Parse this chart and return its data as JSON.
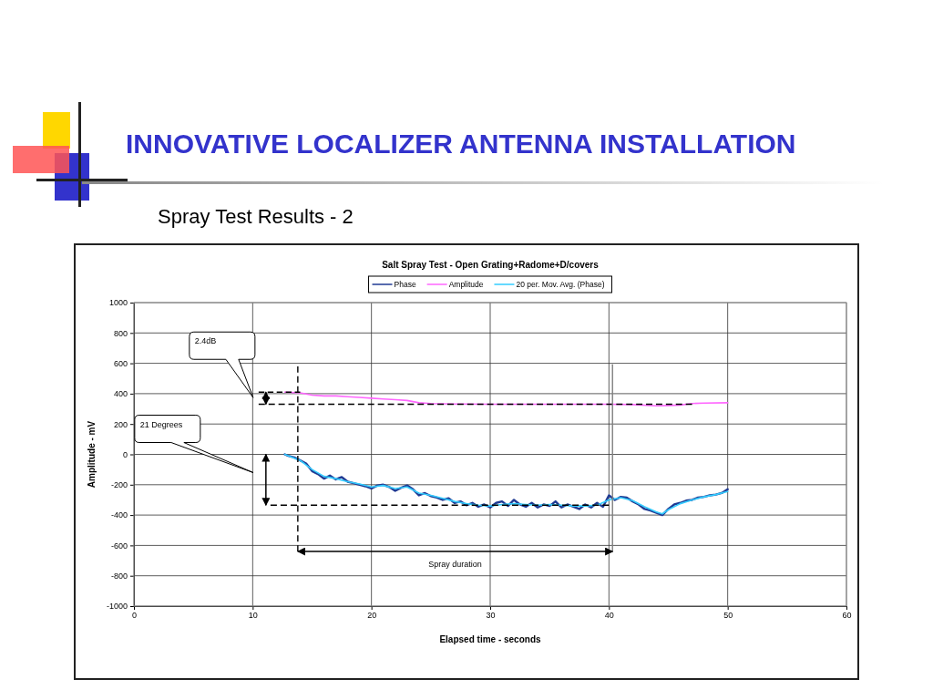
{
  "chart_data": {
    "type": "line",
    "title": "INNOVATIVE LOCALIZER ANTENNA INSTALLATION",
    "subtitle": "Spray Test Results - 2",
    "xlabel": "Elapsed time - seconds",
    "ylabel": "Amplitude - mV",
    "xlim": [
      0,
      60
    ],
    "xticks": [
      0,
      10,
      20,
      30,
      40,
      50,
      60
    ],
    "ylim": [
      -1000,
      1000
    ],
    "yticks": [
      -1000,
      -800,
      -600,
      -400,
      -200,
      0,
      200,
      400,
      600,
      800,
      1000
    ],
    "grid": true,
    "legend": "top",
    "marker": "none",
    "line_style": "solid",
    "annotations": [
      "Salt Spray Test - Open Grating+Radome+D/covers",
      "2.4dB",
      "21 Degrees",
      "Spray duration"
    ],
    "series": [
      {
        "color": "#000000",
        "line_style": "dashed",
        "x": [
          10.5,
          14
        ],
        "values": [
          410,
          410
        ]
      },
      {
        "color": "#000000",
        "line_style": "dashed",
        "x": [
          10.5,
          47
        ],
        "values": [
          330,
          330
        ]
      },
      {
        "color": "#000000",
        "line_style": "dashed",
        "x": [
          11.5,
          40
        ],
        "values": [
          -335,
          -335
        ]
      },
      {
        "color": "#000000",
        "line_style": "dashed",
        "x": [
          13.8,
          13.8
        ],
        "values": [
          580,
          -640
        ]
      },
      {
        "color": "#808080",
        "line_style": "solid",
        "x": [
          40.3,
          40.3
        ],
        "values": [
          590,
          -640
        ]
      },
      {
        "name": "Phase",
        "color": "#1f3a93",
        "x": [
          12.7,
          13,
          13.5,
          14,
          14.5,
          15,
          15.5,
          16,
          16.5,
          17,
          17.5,
          18,
          18.5,
          19,
          19.5,
          20,
          20.5,
          21,
          21.5,
          22,
          22.5,
          23,
          23.5,
          24,
          24.5,
          25,
          25.5,
          26,
          26.5,
          27,
          27.5,
          28,
          28.5,
          29,
          29.5,
          30,
          30.5,
          31,
          31.5,
          32,
          32.5,
          33,
          33.5,
          34,
          34.5,
          35,
          35.5,
          36,
          36.5,
          37,
          37.5,
          38,
          38.5,
          39,
          39.5,
          40,
          40.5,
          41,
          41.5,
          42,
          42.5,
          43,
          43.5,
          44,
          44.5,
          45,
          45.5,
          46,
          46.5,
          47,
          47.5,
          48,
          48.5,
          49,
          49.5,
          50
        ],
        "values": [
          0,
          -10,
          -20,
          -40,
          -60,
          -110,
          -130,
          -160,
          -140,
          -165,
          -150,
          -180,
          -190,
          -200,
          -210,
          -225,
          -205,
          -200,
          -215,
          -240,
          -220,
          -205,
          -230,
          -270,
          -255,
          -275,
          -285,
          -300,
          -290,
          -320,
          -310,
          -335,
          -320,
          -345,
          -330,
          -350,
          -320,
          -310,
          -340,
          -300,
          -330,
          -345,
          -320,
          -350,
          -330,
          -340,
          -310,
          -350,
          -330,
          -345,
          -360,
          -330,
          -350,
          -320,
          -345,
          -270,
          -300,
          -280,
          -285,
          -310,
          -330,
          -360,
          -370,
          -385,
          -400,
          -360,
          -330,
          -320,
          -305,
          -300,
          -285,
          -280,
          -270,
          -265,
          -255,
          -230
        ]
      },
      {
        "name": "Amplitude",
        "color": "#ff66ff",
        "x": [
          12.7,
          14,
          15,
          16,
          17,
          18,
          19,
          20,
          21,
          22,
          23,
          24,
          25,
          27,
          30,
          35,
          40,
          42,
          44,
          45,
          46,
          47,
          48,
          50
        ],
        "values": [
          410,
          405,
          390,
          385,
          385,
          380,
          375,
          370,
          365,
          360,
          355,
          340,
          335,
          332,
          330,
          330,
          330,
          328,
          320,
          322,
          325,
          335,
          338,
          340
        ]
      },
      {
        "name": "20 per. Mov. Avg. (Phase)",
        "color": "#33ccff",
        "x": [
          12.7,
          14,
          15,
          16,
          17,
          18,
          19,
          20,
          21,
          22,
          23,
          24,
          25,
          26,
          27,
          28,
          29,
          30,
          31,
          32,
          33,
          34,
          35,
          36,
          37,
          38,
          39,
          40,
          41,
          42,
          43,
          44,
          44.5,
          45,
          46,
          47,
          48,
          49,
          50
        ],
        "values": [
          0,
          -40,
          -100,
          -145,
          -160,
          -180,
          -195,
          -215,
          -205,
          -225,
          -215,
          -255,
          -270,
          -290,
          -310,
          -325,
          -335,
          -340,
          -330,
          -325,
          -330,
          -335,
          -330,
          -335,
          -340,
          -340,
          -335,
          -300,
          -285,
          -305,
          -345,
          -380,
          -392,
          -365,
          -325,
          -300,
          -280,
          -265,
          -245
        ]
      }
    ]
  }
}
